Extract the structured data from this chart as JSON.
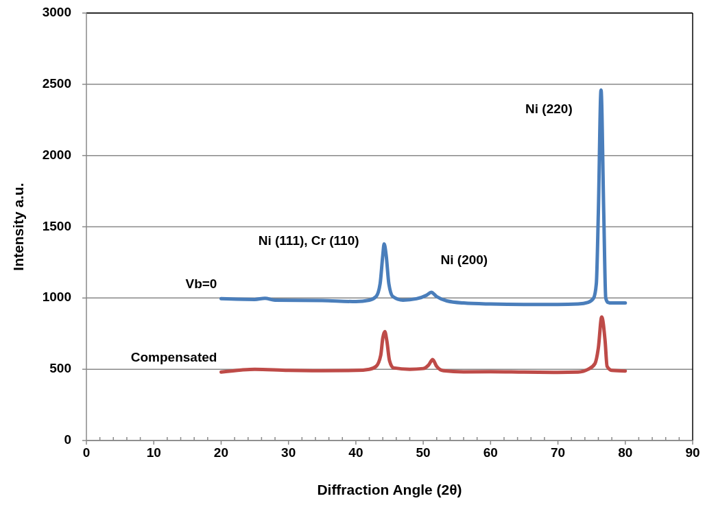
{
  "chart_data": {
    "type": "line",
    "xlabel": "Diffraction Angle (2θ)",
    "ylabel": "Intensity a.u.",
    "xlim": [
      0,
      90
    ],
    "xticks": [
      0,
      10,
      20,
      30,
      40,
      50,
      60,
      70,
      80,
      90
    ],
    "ylim": [
      0,
      3000
    ],
    "yticks": [
      0,
      500,
      1000,
      1500,
      2000,
      2500,
      3000
    ],
    "grid": "y",
    "marker": "none",
    "line_style": "solid",
    "series": [
      {
        "name": "Vb=0",
        "color": "#4a7ebb",
        "x": [
          20,
          25,
          26.5,
          28,
          35,
          40,
          42,
          43,
          43.6,
          44.0,
          44.2,
          44.5,
          44.9,
          45.5,
          47,
          49,
          50.5,
          51.2,
          52,
          53.5,
          56,
          60,
          65,
          70,
          73,
          74.5,
          75.3,
          75.7,
          76.0,
          76.4,
          76.8,
          77.1,
          77.4,
          78,
          80
        ],
        "values": [
          995,
          990,
          998,
          985,
          982,
          975,
          985,
          1010,
          1100,
          1300,
          1380,
          1300,
          1100,
          1010,
          985,
          995,
          1020,
          1040,
          1010,
          980,
          965,
          958,
          955,
          955,
          958,
          970,
          1000,
          1100,
          1600,
          2460,
          1600,
          1000,
          970,
          965,
          965
        ]
      },
      {
        "name": "Compensated",
        "color": "#be4b48",
        "x": [
          20,
          23,
          25,
          30,
          35,
          40,
          42,
          43,
          43.7,
          44.0,
          44.3,
          44.6,
          45,
          45.6,
          48,
          50,
          50.8,
          51.4,
          52,
          53,
          56,
          60,
          65,
          70,
          73,
          74.5,
          75.5,
          76.0,
          76.5,
          77.0,
          77.3,
          78,
          80
        ],
        "values": [
          480,
          495,
          500,
          492,
          490,
          492,
          500,
          520,
          600,
          720,
          765,
          700,
          560,
          510,
          500,
          505,
          530,
          568,
          520,
          490,
          482,
          483,
          480,
          478,
          480,
          500,
          540,
          650,
          867,
          700,
          520,
          492,
          488
        ]
      }
    ],
    "annotations": [
      {
        "text": "Ni (111), Cr (110)",
        "x": 44.2,
        "y": 1380
      },
      {
        "text": "Ni (200)",
        "x": 51.2,
        "y": 1040
      },
      {
        "text": "Ni (220)",
        "x": 76.4,
        "y": 2460
      }
    ]
  }
}
